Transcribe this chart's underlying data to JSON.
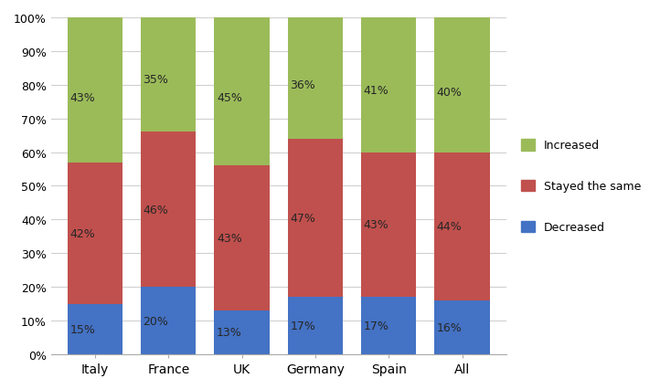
{
  "categories": [
    "Italy",
    "France",
    "UK",
    "Germany",
    "Spain",
    "All"
  ],
  "decreased": [
    15,
    20,
    13,
    17,
    17,
    16
  ],
  "stayed_same": [
    42,
    46,
    43,
    47,
    43,
    44
  ],
  "increased": [
    43,
    35,
    45,
    36,
    41,
    40
  ],
  "color_decreased": "#4472C4",
  "color_stayed": "#C0504D",
  "color_increased": "#9BBB59",
  "label_decreased": "Decreased",
  "label_stayed": "Stayed the same",
  "label_increased": "Increased",
  "ytick_labels": [
    "0%",
    "10%",
    "20%",
    "30%",
    "40%",
    "50%",
    "60%",
    "70%",
    "80%",
    "90%",
    "100%"
  ],
  "ytick_values": [
    0,
    10,
    20,
    30,
    40,
    50,
    60,
    70,
    80,
    90,
    100
  ],
  "bar_width": 0.75,
  "figsize": [
    7.22,
    4.27
  ],
  "dpi": 100,
  "label_color": "#262626",
  "label_fontsize": 9
}
